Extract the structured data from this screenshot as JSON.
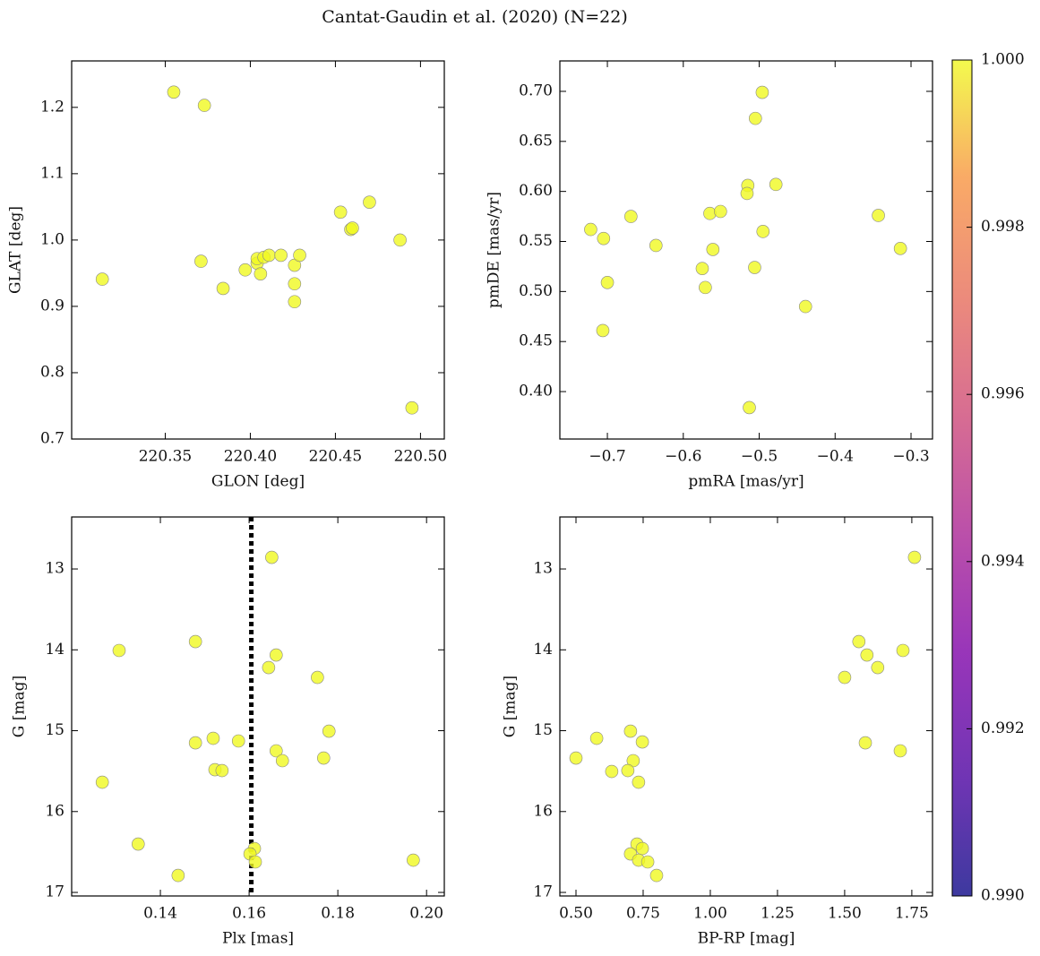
{
  "title": "Cantat-Gaudin et al. (2020) (N=22)",
  "chart_data": [
    {
      "type": "scatter",
      "xlabel": "GLON [deg]",
      "ylabel": "GLAT [deg]",
      "color": "#f0f921",
      "x": [
        220.355,
        220.373,
        220.313,
        220.371,
        220.384,
        220.397,
        220.404,
        220.404,
        220.406,
        220.408,
        220.411,
        220.418,
        220.426,
        220.429,
        220.426,
        220.426,
        220.453,
        220.459,
        220.46,
        220.47,
        220.488,
        220.495
      ],
      "values": [
        1.223,
        1.203,
        0.941,
        0.968,
        0.927,
        0.955,
        0.965,
        0.972,
        0.949,
        0.974,
        0.977,
        0.977,
        0.962,
        0.977,
        0.934,
        0.907,
        1.042,
        1.016,
        1.018,
        1.057,
        1.0,
        0.747
      ],
      "xlim": [
        220.295,
        220.514
      ],
      "ylim": [
        0.7,
        1.27
      ],
      "xticks": [
        220.35,
        {
          "value": 220.4,
          "label": "220.40"
        },
        220.45,
        {
          "value": 220.5,
          "label": "220.50"
        }
      ],
      "yticks": [
        0.7,
        0.8,
        0.9,
        {
          "value": 1.0,
          "label": "1.0"
        },
        1.1,
        1.2
      ]
    },
    {
      "type": "scatter",
      "xlabel": "pmRA [mas/yr]",
      "ylabel": "pmDE [mas/yr]",
      "color": "#f0f921",
      "x": [
        -0.496,
        -0.505,
        -0.515,
        -0.478,
        -0.516,
        -0.343,
        -0.722,
        -0.705,
        -0.669,
        -0.636,
        -0.565,
        -0.551,
        -0.561,
        -0.495,
        -0.314,
        -0.575,
        -0.506,
        -0.7,
        -0.571,
        -0.439,
        -0.706,
        -0.513
      ],
      "values": [
        0.699,
        0.673,
        0.606,
        0.607,
        0.598,
        0.576,
        0.562,
        0.553,
        0.575,
        0.546,
        0.578,
        0.58,
        0.542,
        0.56,
        0.543,
        0.523,
        0.524,
        0.509,
        0.504,
        0.485,
        0.461,
        0.384
      ],
      "xlim": [
        -0.7626,
        -0.2717
      ],
      "ylim": [
        0.3526,
        0.7304
      ],
      "xticks": [
        {
          "value": -0.7,
          "label": "−0.7"
        },
        {
          "value": -0.6,
          "label": "−0.6"
        },
        {
          "value": -0.5,
          "label": "−0.5"
        },
        {
          "value": -0.4,
          "label": "−0.4"
        },
        {
          "value": -0.3,
          "label": "−0.3"
        }
      ],
      "yticks": [
        {
          "value": 0.4,
          "label": "0.40"
        },
        0.45,
        {
          "value": 0.5,
          "label": "0.50"
        },
        0.55,
        {
          "value": 0.6,
          "label": "0.60"
        },
        0.65,
        {
          "value": 0.7,
          "label": "0.70"
        }
      ]
    },
    {
      "type": "scatter",
      "xlabel": "Plx [mas]",
      "ylabel": "G [mag]",
      "color": "#f0f921",
      "x": [
        0.1651,
        0.1307,
        0.1479,
        0.1661,
        0.1644,
        0.1754,
        0.1576,
        0.1479,
        0.1519,
        0.1661,
        0.1675,
        0.178,
        0.1768,
        0.1523,
        0.1539,
        0.1269,
        0.135,
        0.1612,
        0.1602,
        0.1614,
        0.144,
        0.197
      ],
      "values": [
        12.856,
        14.008,
        13.898,
        14.064,
        14.219,
        14.341,
        15.127,
        15.15,
        15.094,
        15.249,
        15.371,
        15.006,
        15.338,
        15.482,
        15.493,
        15.637,
        16.402,
        16.457,
        16.524,
        16.623,
        16.79,
        16.601
      ],
      "xlim": [
        0.12,
        0.204
      ],
      "ylim": [
        17.044,
        12.357
      ],
      "xticks": [
        0.14,
        0.16,
        0.18,
        {
          "value": 0.2,
          "label": "0.20"
        }
      ],
      "yticks": [
        13,
        14,
        15,
        16,
        17
      ],
      "vline": 0.1605,
      "vline_color": "#000000"
    },
    {
      "type": "scatter",
      "xlabel": "BP-RP [mag]",
      "ylabel": "G [mag]",
      "color": "#f0f921",
      "x": [
        1.76,
        1.553,
        1.717,
        1.583,
        1.623,
        1.5,
        0.703,
        0.747,
        0.577,
        0.713,
        0.5,
        0.633,
        0.693,
        0.733,
        1.577,
        1.707,
        0.727,
        0.747,
        0.703,
        0.733,
        0.767,
        0.8
      ],
      "values": [
        12.856,
        13.898,
        14.008,
        14.064,
        14.219,
        14.341,
        15.006,
        15.139,
        15.094,
        15.371,
        15.338,
        15.504,
        15.493,
        15.637,
        15.15,
        15.249,
        16.402,
        16.457,
        16.524,
        16.601,
        16.623,
        16.79
      ],
      "xlim": [
        0.44,
        1.827
      ],
      "ylim": [
        17.044,
        12.357
      ],
      "xticks": [
        {
          "value": 0.5,
          "label": "0.50"
        },
        0.75,
        {
          "value": 1.0,
          "label": "1.00"
        },
        1.25,
        {
          "value": 1.5,
          "label": "1.50"
        },
        1.75
      ],
      "yticks": [
        13,
        14,
        15,
        16,
        17
      ]
    }
  ],
  "colorbar": {
    "cmap": "plasma",
    "lim": [
      0.99,
      1.0
    ],
    "ticks": [
      {
        "value": 0.99,
        "label": "0.990"
      },
      0.992,
      0.994,
      0.996,
      0.998,
      {
        "value": 1.0,
        "label": "1.000"
      }
    ]
  }
}
